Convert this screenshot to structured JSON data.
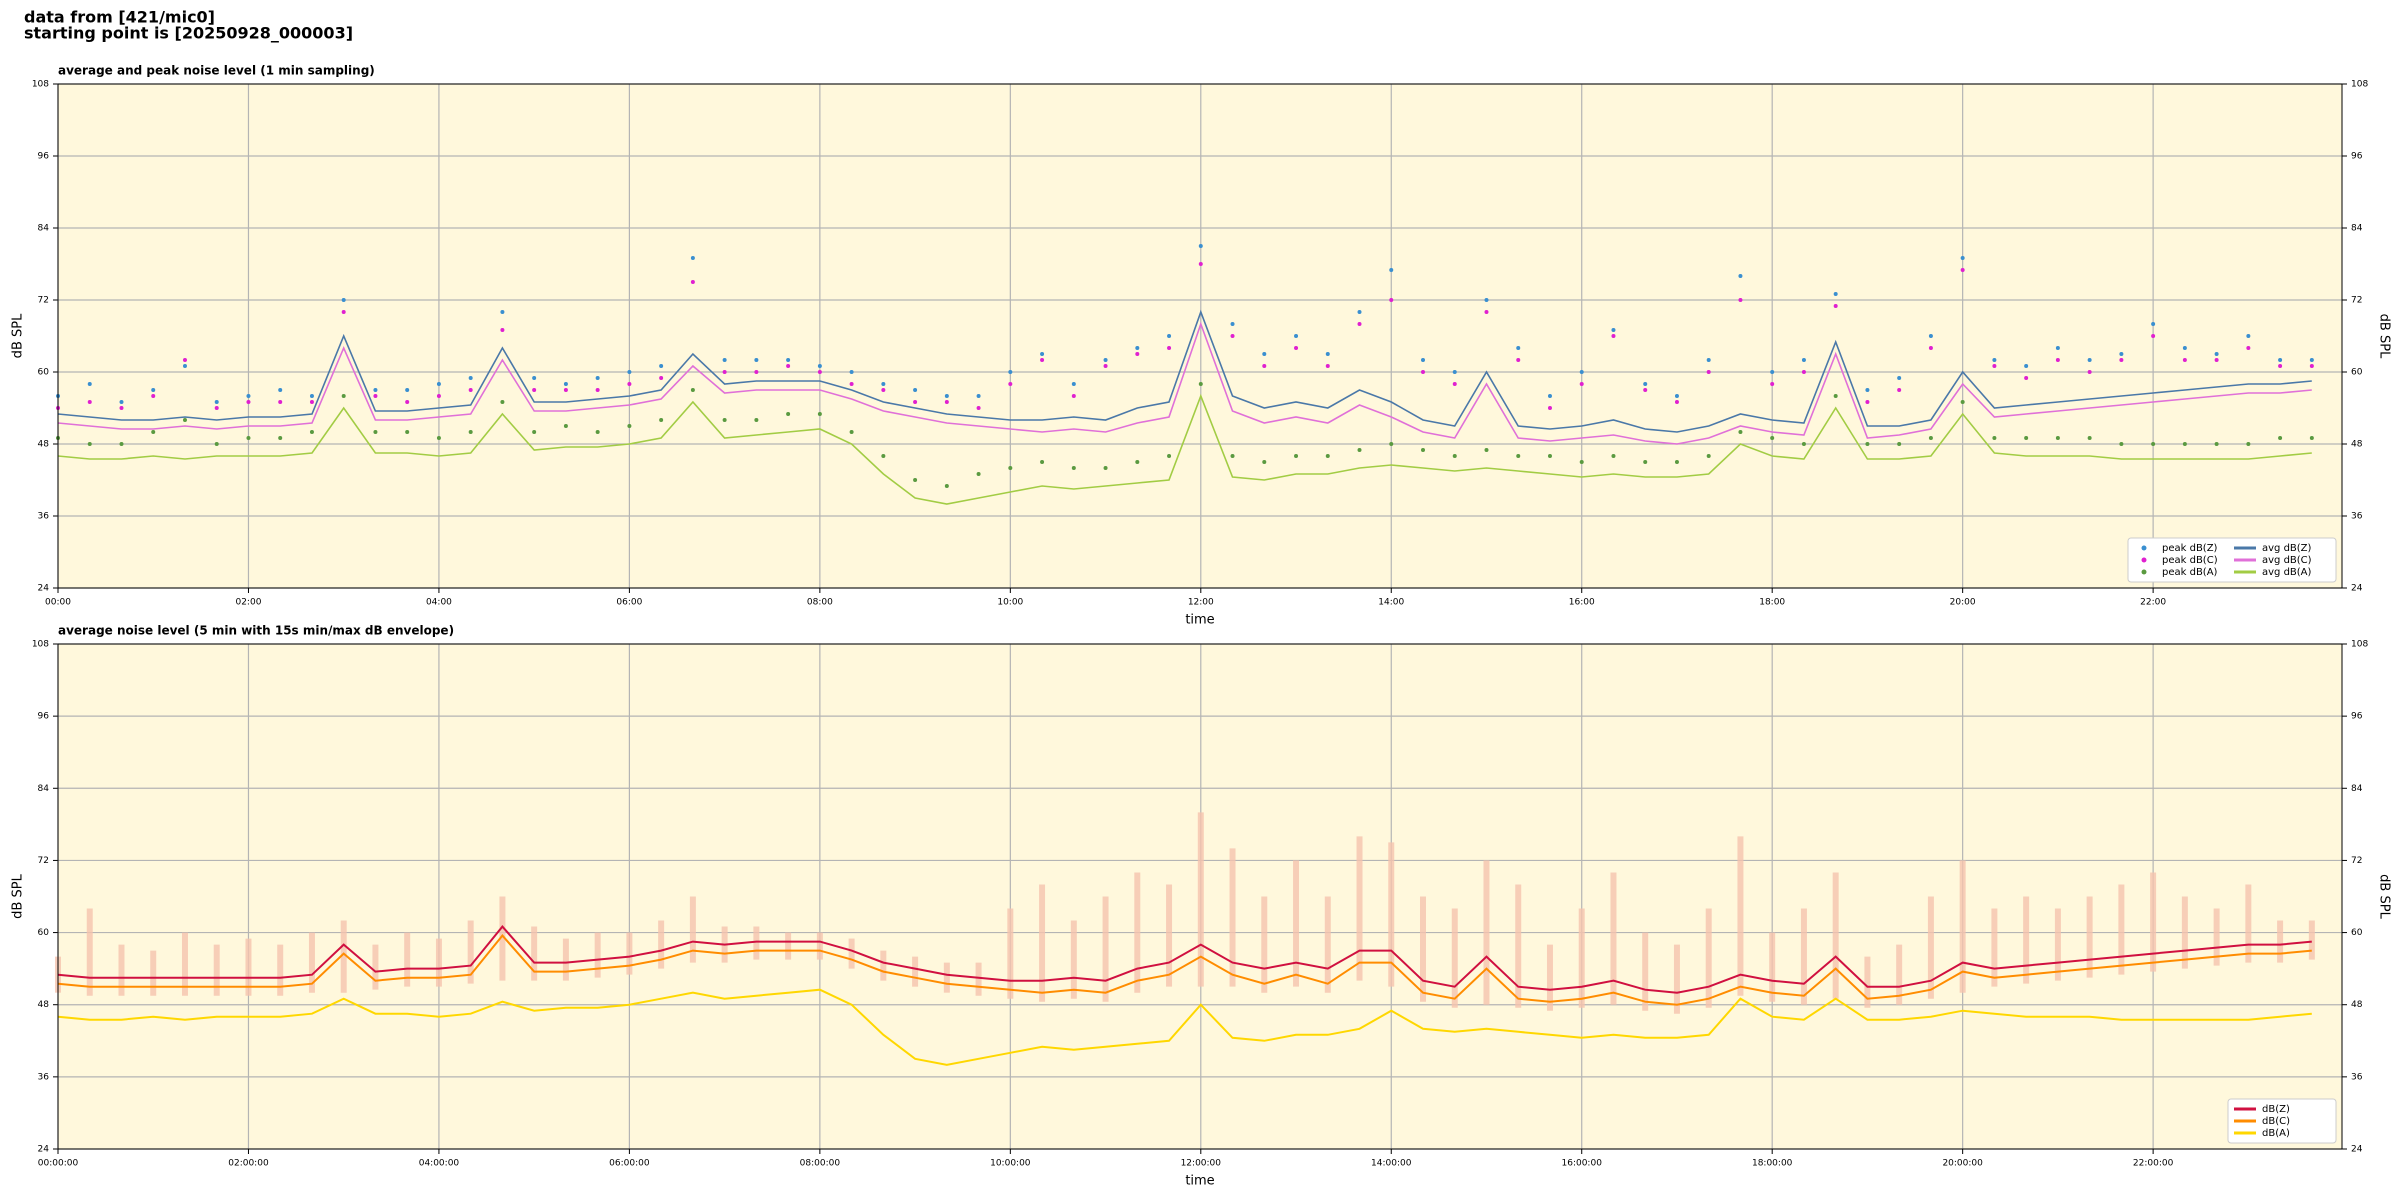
{
  "header": {
    "line1": "data from [421/mic0]",
    "line2": "starting point is [20250928_000003]"
  },
  "chart_data": [
    {
      "type": "line",
      "title": "average and peak noise level (1 min sampling)",
      "x_label": "time",
      "y_label": "dB SPL",
      "y2_label": "dB SPL",
      "x": [
        "00:00",
        "00:20",
        "00:40",
        "01:00",
        "01:20",
        "01:40",
        "02:00",
        "02:20",
        "02:40",
        "03:00",
        "03:20",
        "03:40",
        "04:00",
        "04:20",
        "04:40",
        "05:00",
        "05:20",
        "05:40",
        "06:00",
        "06:20",
        "06:40",
        "07:00",
        "07:20",
        "07:40",
        "08:00",
        "08:20",
        "08:40",
        "09:00",
        "09:20",
        "09:40",
        "10:00",
        "10:20",
        "10:40",
        "11:00",
        "11:20",
        "11:40",
        "12:00",
        "12:20",
        "12:40",
        "13:00",
        "13:20",
        "13:40",
        "14:00",
        "14:20",
        "14:40",
        "15:00",
        "15:20",
        "15:40",
        "16:00",
        "16:20",
        "16:40",
        "17:00",
        "17:20",
        "17:40",
        "18:00",
        "18:20",
        "18:40",
        "19:00",
        "19:20",
        "19:40",
        "20:00",
        "20:20",
        "20:40",
        "21:00",
        "21:20",
        "21:40",
        "22:00",
        "22:20",
        "22:40",
        "23:00",
        "23:20",
        "23:40"
      ],
      "xlim": [
        "00:00",
        "23:59"
      ],
      "xticks": [
        "00:00",
        "02:00",
        "04:00",
        "06:00",
        "08:00",
        "10:00",
        "12:00",
        "14:00",
        "16:00",
        "18:00",
        "20:00",
        "22:00"
      ],
      "ylim": [
        24,
        108
      ],
      "yticks": [
        24,
        36,
        48,
        60,
        72,
        84,
        96,
        108
      ],
      "grid": true,
      "legend": "lower right",
      "series": [
        {
          "name": "peak dB(Z)",
          "style": "scatter",
          "color": "#3a8fd0",
          "values": [
            56,
            58,
            55,
            57,
            61,
            55,
            56,
            57,
            56,
            72,
            57,
            57,
            58,
            59,
            70,
            59,
            58,
            59,
            60,
            61,
            79,
            62,
            62,
            62,
            61,
            60,
            58,
            57,
            56,
            56,
            60,
            63,
            58,
            62,
            64,
            66,
            81,
            68,
            63,
            66,
            63,
            70,
            77,
            62,
            60,
            72,
            64,
            56,
            60,
            67,
            58,
            56,
            62,
            76,
            60,
            62,
            73,
            57,
            59,
            66,
            79,
            62,
            61,
            64,
            62,
            63,
            68,
            64,
            63,
            66,
            62,
            62
          ]
        },
        {
          "name": "peak dB(C)",
          "style": "scatter",
          "color": "#e020d0",
          "values": [
            54,
            55,
            54,
            56,
            62,
            54,
            55,
            55,
            55,
            70,
            56,
            55,
            56,
            57,
            67,
            57,
            57,
            57,
            58,
            59,
            75,
            60,
            60,
            61,
            60,
            58,
            57,
            55,
            55,
            54,
            58,
            62,
            56,
            61,
            63,
            64,
            78,
            66,
            61,
            64,
            61,
            68,
            72,
            60,
            58,
            70,
            62,
            54,
            58,
            66,
            57,
            55,
            60,
            72,
            58,
            60,
            71,
            55,
            57,
            64,
            77,
            61,
            59,
            62,
            60,
            62,
            66,
            62,
            62,
            64,
            61,
            61
          ]
        },
        {
          "name": "peak dB(A)",
          "style": "scatter",
          "color": "#5a9a40",
          "values": [
            49,
            48,
            48,
            50,
            52,
            48,
            49,
            49,
            50,
            56,
            50,
            50,
            49,
            50,
            55,
            50,
            51,
            50,
            51,
            52,
            57,
            52,
            52,
            53,
            53,
            50,
            46,
            42,
            41,
            43,
            44,
            45,
            44,
            44,
            45,
            46,
            58,
            46,
            45,
            46,
            46,
            47,
            48,
            47,
            46,
            47,
            46,
            46,
            45,
            46,
            45,
            45,
            46,
            50,
            49,
            48,
            56,
            48,
            48,
            49,
            55,
            49,
            49,
            49,
            49,
            48,
            48,
            48,
            48,
            48,
            49,
            49
          ]
        },
        {
          "name": "avg dB(Z)",
          "style": "line",
          "color": "#4a78a8",
          "values": [
            53,
            52.5,
            52,
            52,
            52.5,
            52,
            52.5,
            52.5,
            53,
            66,
            53.5,
            53.5,
            54,
            54.5,
            64,
            55,
            55,
            55.5,
            56,
            57,
            63,
            58,
            58.5,
            58.5,
            58.5,
            57,
            55,
            54,
            53,
            52.5,
            52,
            52,
            52.5,
            52,
            54,
            55,
            70,
            56,
            54,
            55,
            54,
            57,
            55,
            52,
            51,
            60,
            51,
            50.5,
            51,
            52,
            50.5,
            50,
            51,
            53,
            52,
            51.5,
            65,
            51,
            51,
            52,
            60,
            54,
            54.5,
            55,
            55.5,
            56,
            56.5,
            57,
            57.5,
            58,
            58,
            58.5
          ]
        },
        {
          "name": "avg dB(C)",
          "style": "line",
          "color": "#e070d8",
          "values": [
            51.5,
            51,
            50.5,
            50.5,
            51,
            50.5,
            51,
            51,
            51.5,
            64,
            52,
            52,
            52.5,
            53,
            62,
            53.5,
            53.5,
            54,
            54.5,
            55.5,
            61,
            56.5,
            57,
            57,
            57,
            55.5,
            53.5,
            52.5,
            51.5,
            51,
            50.5,
            50,
            50.5,
            50,
            51.5,
            52.5,
            68,
            53.5,
            51.5,
            52.5,
            51.5,
            54.5,
            52.5,
            50,
            49,
            58,
            49,
            48.5,
            49,
            49.5,
            48.5,
            48,
            49,
            51,
            50,
            49.5,
            63,
            49,
            49.5,
            50.5,
            58,
            52.5,
            53,
            53.5,
            54,
            54.5,
            55,
            55.5,
            56,
            56.5,
            56.5,
            57
          ]
        },
        {
          "name": "avg dB(A)",
          "style": "line",
          "color": "#a2cc44",
          "values": [
            46,
            45.5,
            45.5,
            46,
            45.5,
            46,
            46,
            46,
            46.5,
            54,
            46.5,
            46.5,
            46,
            46.5,
            53,
            47,
            47.5,
            47.5,
            48,
            49,
            55,
            49,
            49.5,
            50,
            50.5,
            48,
            43,
            39,
            38,
            39,
            40,
            41,
            40.5,
            41,
            41.5,
            42,
            56,
            42.5,
            42,
            43,
            43,
            44,
            44.5,
            44,
            43.5,
            44,
            43.5,
            43,
            42.5,
            43,
            42.5,
            42.5,
            43,
            48,
            46,
            45.5,
            54,
            45.5,
            45.5,
            46,
            53,
            46.5,
            46,
            46,
            46,
            45.5,
            45.5,
            45.5,
            45.5,
            45.5,
            46,
            46.5
          ]
        }
      ]
    },
    {
      "type": "line",
      "title": "average noise level (5 min with 15s min/max dB envelope)",
      "x_label": "time",
      "y_label": "dB SPL",
      "y2_label": "dB SPL",
      "x": [
        "00:00:00",
        "00:20:00",
        "00:40:00",
        "01:00:00",
        "01:20:00",
        "01:40:00",
        "02:00:00",
        "02:20:00",
        "02:40:00",
        "03:00:00",
        "03:20:00",
        "03:40:00",
        "04:00:00",
        "04:20:00",
        "04:40:00",
        "05:00:00",
        "05:20:00",
        "05:40:00",
        "06:00:00",
        "06:20:00",
        "06:40:00",
        "07:00:00",
        "07:20:00",
        "07:40:00",
        "08:00:00",
        "08:20:00",
        "08:40:00",
        "09:00:00",
        "09:20:00",
        "09:40:00",
        "10:00:00",
        "10:20:00",
        "10:40:00",
        "11:00:00",
        "11:20:00",
        "11:40:00",
        "12:00:00",
        "12:20:00",
        "12:40:00",
        "13:00:00",
        "13:20:00",
        "13:40:00",
        "14:00:00",
        "14:20:00",
        "14:40:00",
        "15:00:00",
        "15:20:00",
        "15:40:00",
        "16:00:00",
        "16:20:00",
        "16:40:00",
        "17:00:00",
        "17:20:00",
        "17:40:00",
        "18:00:00",
        "18:20:00",
        "18:40:00",
        "19:00:00",
        "19:20:00",
        "19:40:00",
        "20:00:00",
        "20:20:00",
        "20:40:00",
        "21:00:00",
        "21:20:00",
        "21:40:00",
        "22:00:00",
        "22:20:00",
        "22:40:00",
        "23:00:00",
        "23:20:00",
        "23:40:00"
      ],
      "xlim": [
        "00:00:00",
        "23:59:00"
      ],
      "xticks": [
        "00:00:00",
        "02:00:00",
        "04:00:00",
        "06:00:00",
        "08:00:00",
        "10:00:00",
        "12:00:00",
        "14:00:00",
        "16:00:00",
        "18:00:00",
        "20:00:00",
        "22:00:00"
      ],
      "ylim": [
        24,
        108
      ],
      "yticks": [
        24,
        36,
        48,
        60,
        72,
        84,
        96,
        108
      ],
      "grid": true,
      "legend": "lower right",
      "envelope": {
        "color": "#f6c4ae",
        "min": [
          50,
          49.5,
          49.5,
          49.5,
          49.5,
          49.5,
          49.5,
          49.5,
          50,
          50,
          50.5,
          51,
          51,
          51.5,
          52,
          52,
          52,
          52.5,
          53,
          54,
          55,
          55,
          55.5,
          55.5,
          55.5,
          54,
          52,
          51,
          50,
          49.5,
          49,
          48.5,
          49,
          48.5,
          50,
          51,
          51,
          51,
          50,
          51,
          50,
          52,
          51,
          48.5,
          47.5,
          48,
          47.5,
          47,
          47.5,
          48,
          47,
          46.5,
          47.5,
          49.5,
          48.5,
          48,
          49,
          47.5,
          48,
          49,
          50,
          51,
          51.5,
          52,
          52.5,
          53,
          53.5,
          54,
          54.5,
          55,
          55,
          55.5
        ],
        "max": [
          56,
          64,
          58,
          57,
          60,
          58,
          59,
          58,
          60,
          62,
          58,
          60,
          59,
          62,
          66,
          61,
          59,
          60,
          60,
          62,
          66,
          61,
          61,
          60,
          60,
          59,
          57,
          56,
          55,
          55,
          64,
          68,
          62,
          66,
          70,
          68,
          80,
          74,
          66,
          72,
          66,
          76,
          75,
          66,
          64,
          72,
          68,
          58,
          64,
          70,
          60,
          58,
          64,
          76,
          60,
          64,
          70,
          56,
          58,
          66,
          72,
          64,
          66,
          64,
          66,
          68,
          70,
          66,
          64,
          68,
          62,
          62
        ]
      },
      "series": [
        {
          "name": "dB(Z)",
          "style": "line",
          "color": "#d01040",
          "values": [
            53,
            52.5,
            52.5,
            52.5,
            52.5,
            52.5,
            52.5,
            52.5,
            53,
            58,
            53.5,
            54,
            54,
            54.5,
            61,
            55,
            55,
            55.5,
            56,
            57,
            58.5,
            58,
            58.5,
            58.5,
            58.5,
            57,
            55,
            54,
            53,
            52.5,
            52,
            52,
            52.5,
            52,
            54,
            55,
            58,
            55,
            54,
            55,
            54,
            57,
            57,
            52,
            51,
            56,
            51,
            50.5,
            51,
            52,
            50.5,
            50,
            51,
            53,
            52,
            51.5,
            56,
            51,
            51,
            52,
            55,
            54,
            54.5,
            55,
            55.5,
            56,
            56.5,
            57,
            57.5,
            58,
            58,
            58.5
          ]
        },
        {
          "name": "dB(C)",
          "style": "line",
          "color": "#ff8c00",
          "values": [
            51.5,
            51,
            51,
            51,
            51,
            51,
            51,
            51,
            51.5,
            56.5,
            52,
            52.5,
            52.5,
            53,
            59.5,
            53.5,
            53.5,
            54,
            54.5,
            55.5,
            57,
            56.5,
            57,
            57,
            57,
            55.5,
            53.5,
            52.5,
            51.5,
            51,
            50.5,
            50,
            50.5,
            50,
            52,
            53,
            56,
            53,
            51.5,
            53,
            51.5,
            55,
            55,
            50,
            49,
            54,
            49,
            48.5,
            49,
            50,
            48.5,
            48,
            49,
            51,
            50,
            49.5,
            54,
            49,
            49.5,
            50.5,
            53.5,
            52.5,
            53,
            53.5,
            54,
            54.5,
            55,
            55.5,
            56,
            56.5,
            56.5,
            57
          ]
        },
        {
          "name": "dB(A)",
          "style": "line",
          "color": "#ffd700",
          "values": [
            46,
            45.5,
            45.5,
            46,
            45.5,
            46,
            46,
            46,
            46.5,
            49,
            46.5,
            46.5,
            46,
            46.5,
            48.5,
            47,
            47.5,
            47.5,
            48,
            49,
            50,
            49,
            49.5,
            50,
            50.5,
            48,
            43,
            39,
            38,
            39,
            40,
            41,
            40.5,
            41,
            41.5,
            42,
            48,
            42.5,
            42,
            43,
            43,
            44,
            47,
            44,
            43.5,
            44,
            43.5,
            43,
            42.5,
            43,
            42.5,
            42.5,
            43,
            49,
            46,
            45.5,
            49,
            45.5,
            45.5,
            46,
            47,
            46.5,
            46,
            46,
            46,
            45.5,
            45.5,
            45.5,
            45.5,
            45.5,
            46,
            46.5
          ]
        }
      ]
    }
  ]
}
